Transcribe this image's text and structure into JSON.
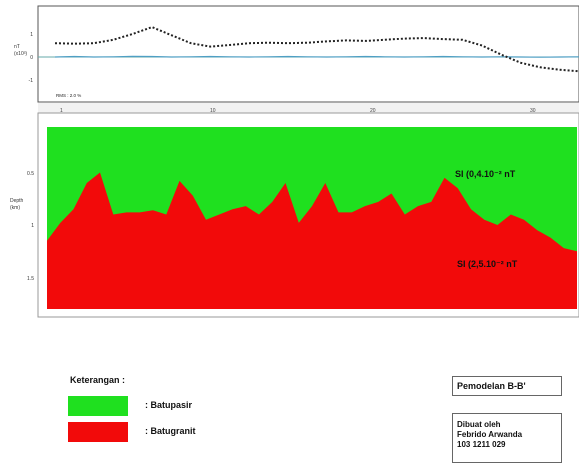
{
  "top_panel": {
    "y_label_line1": "nT",
    "y_label_line2": "(x10³)",
    "y_ticks": [
      "1",
      "0",
      "-1"
    ],
    "x_ticks": [
      "1",
      "10",
      "20",
      "30"
    ],
    "corner_label": "RMS : 2.0 %",
    "observed_profile": [
      0.6,
      0.58,
      0.6,
      0.75,
      1.0,
      1.3,
      0.95,
      0.6,
      0.45,
      0.52,
      0.6,
      0.62,
      0.6,
      0.62,
      0.68,
      0.72,
      0.7,
      0.75,
      0.8,
      0.82,
      0.78,
      0.75,
      0.5,
      0.1,
      -0.25,
      -0.45,
      -0.55,
      -0.62
    ],
    "calculated_profile": [
      0.0,
      0.02,
      0.0,
      0.01,
      0.03,
      0.02,
      0.0,
      0.01,
      0.02,
      0.01,
      0.0,
      0.01,
      0.02,
      0.01,
      0.0,
      0.01,
      0.02,
      0.01,
      0.0,
      0.01,
      0.02,
      0.01,
      0.0,
      0.01,
      0.0,
      -0.01,
      0.0,
      0.01
    ]
  },
  "section": {
    "y_label_line1": "Depth",
    "y_label_line2": "(km)",
    "y_ticks": [
      "0.5",
      "1",
      "1.5"
    ],
    "layer_upper_label": "SI (0,4.10⁻² nT",
    "layer_lower_label": "SI (2,5.10⁻² nT",
    "upper_color": "#1fe01f",
    "lower_color": "#f20a0a",
    "boundary_depths": [
      1.15,
      0.98,
      0.85,
      0.6,
      0.5,
      0.9,
      0.88,
      0.88,
      0.86,
      0.9,
      0.58,
      0.72,
      0.95,
      0.9,
      0.85,
      0.82,
      0.9,
      0.78,
      0.6,
      0.98,
      0.82,
      0.6,
      0.88,
      0.88,
      0.82,
      0.78,
      0.7,
      0.9,
      0.82,
      0.78,
      0.55,
      0.65,
      0.85,
      0.95,
      1.0,
      0.9,
      0.95,
      1.05,
      1.12,
      1.22,
      1.25
    ]
  },
  "legend": {
    "title": "Keterangan :",
    "items": [
      {
        "label": ": Batupasir",
        "color": "#1fe01f"
      },
      {
        "label": ": Batugranit",
        "color": "#f20a0a"
      }
    ]
  },
  "info": {
    "title": "Pemodelan B-B'",
    "author_lines": [
      "Dibuat oleh",
      "Febrido Arwanda",
      "103 1211 029"
    ]
  }
}
